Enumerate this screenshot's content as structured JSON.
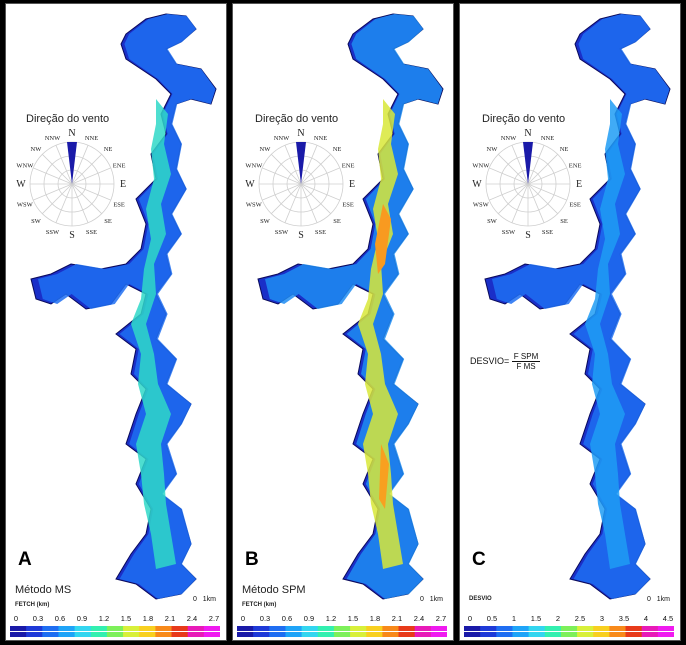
{
  "panels": [
    {
      "id": "A",
      "letter": "A",
      "compass_title": "Direção do vento",
      "method_label": "Método MS",
      "scale_header": "FETCH (km)",
      "ticks": [
        "0",
        "0.3",
        "0.6",
        "0.9",
        "1.2",
        "1.5",
        "1.8",
        "2.1",
        "2.4",
        "2.7"
      ],
      "formula": null
    },
    {
      "id": "B",
      "letter": "B",
      "compass_title": "Direção do vento",
      "method_label": "Método SPM",
      "scale_header": "FETCH (km)",
      "ticks": [
        "0",
        "0.3",
        "0.6",
        "0.9",
        "1.2",
        "1.5",
        "1.8",
        "2.1",
        "2.4",
        "2.7"
      ],
      "formula": null
    },
    {
      "id": "C",
      "letter": "C",
      "compass_title": "Direção do vento",
      "method_label": "",
      "scale_header": "DESVIO",
      "ticks": [
        "0",
        "0.5",
        "1",
        "1.5",
        "2",
        "2.5",
        "3",
        "3.5",
        "4",
        "4.5"
      ],
      "formula": {
        "lhs": "DESVIO=",
        "num": "F SPM",
        "den": "F MS"
      }
    }
  ],
  "compass": {
    "directions": [
      "N",
      "NNE",
      "NE",
      "ENE",
      "E",
      "ESE",
      "SE",
      "SSE",
      "S",
      "SSW",
      "SW",
      "WSW",
      "W",
      "WNW",
      "NW",
      "NNW"
    ],
    "wind_from": "N"
  },
  "scale_bar": {
    "start": "0",
    "end": "1km"
  },
  "colormap": [
    "#1a1aa8",
    "#1f3ad8",
    "#1f6ef2",
    "#1fa4f8",
    "#33d6f0",
    "#33f0b0",
    "#7df05a",
    "#d8f03a",
    "#f8d020",
    "#f88a1a",
    "#e83a1a",
    "#e81ab8",
    "#f01af0"
  ]
}
